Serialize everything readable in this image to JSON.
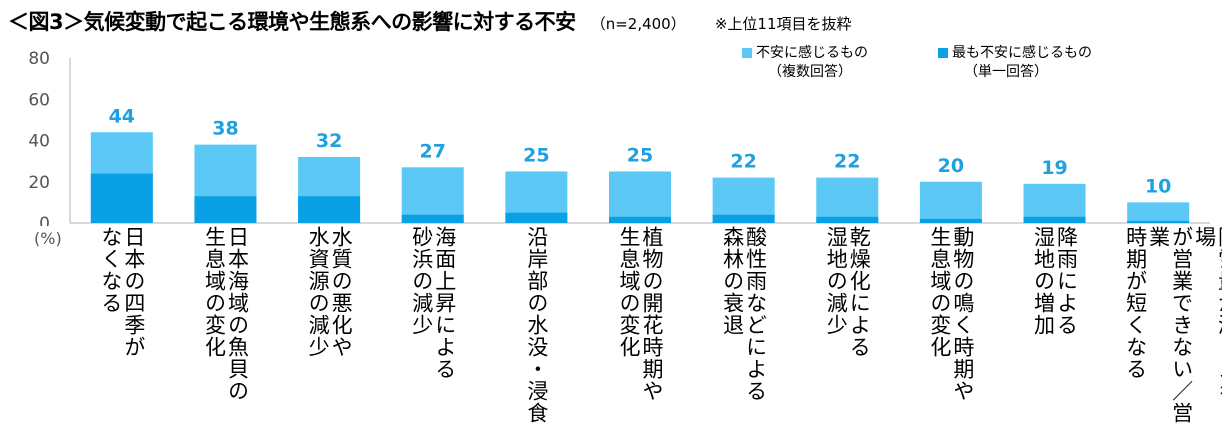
{
  "title": "＜図3＞気候変動で起こる環境や生態系への影響に対する不安",
  "subtitle": "（n=2,400）",
  "note": "※上位11項目を抜粋",
  "colors": {
    "multi": "#5bc8f5",
    "single": "#0aa0e6",
    "label": "#1fa0e0",
    "axis": "#b0b0b0",
    "text": "#555555"
  },
  "chart_data": {
    "type": "bar",
    "stacked": "overlay",
    "title": "＜図3＞気候変動で起こる環境や生態系への影響に対する不安",
    "ylabel": "(%)",
    "ylim": [
      0,
      80
    ],
    "yticks": [
      0,
      20,
      40,
      60,
      80
    ],
    "categories": [
      [
        "日本の四季が",
        "なくなる"
      ],
      [
        "日本海域の魚貝の",
        "生息域の変化"
      ],
      [
        "水質の悪化や",
        "水資源の減少"
      ],
      [
        "海面上昇による",
        "砂浜の減少"
      ],
      [
        "沿岸部の水没・浸食"
      ],
      [
        "植物の開花時期や",
        "生息域の変化"
      ],
      [
        "酸性雨などによる",
        "森林の衰退"
      ],
      [
        "乾燥化による",
        "湿地の減少"
      ],
      [
        "動物の鳴く時期や",
        "生息域の変化"
      ],
      [
        "降雨による",
        "湿地の増加"
      ],
      [
        "降雪量が減りスキー場",
        "が営業できない／営業",
        "時期が短くなる"
      ]
    ],
    "series": [
      {
        "name": "不安に感じるもの（複数回答）",
        "values": [
          44,
          38,
          32,
          27,
          25,
          25,
          22,
          22,
          20,
          19,
          10
        ]
      },
      {
        "name": "最も不安に感じるもの（単一回答）",
        "values": [
          24,
          13,
          13,
          4,
          5,
          3,
          4,
          3,
          2,
          3,
          1
        ]
      }
    ],
    "data_labels": [
      "44",
      "38",
      "32",
      "27",
      "25",
      "25",
      "22",
      "22",
      "20",
      "19",
      "10"
    ],
    "legend": [
      {
        "line1": "不安に感じるもの",
        "line2": "（複数回答）"
      },
      {
        "line1": "最も不安に感じるもの",
        "line2": "（単一回答）"
      }
    ]
  }
}
